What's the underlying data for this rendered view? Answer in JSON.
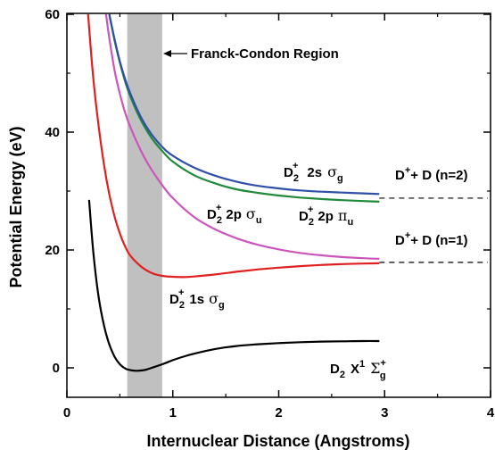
{
  "chart_data": {
    "type": "line",
    "xlabel": "Internuclear Distance (Angstroms)",
    "ylabel": "Potential Energy (eV)",
    "xlim": [
      0,
      4
    ],
    "ylim": [
      -5,
      60
    ],
    "x_ticks": [
      0,
      1,
      2,
      3,
      4
    ],
    "y_ticks": [
      0,
      20,
      40,
      60
    ],
    "grid": false,
    "legend": "none",
    "franck_condon_region": {
      "label": "Franck-Condon Region",
      "x_range": [
        0.57,
        0.9
      ],
      "color": "#c0c0c0"
    },
    "series": [
      {
        "color": "#000000",
        "x": [
          0.21,
          0.25,
          0.3,
          0.35,
          0.4,
          0.45,
          0.5,
          0.55,
          0.6,
          0.65,
          0.7,
          0.75,
          0.8,
          0.9,
          1.0,
          1.1,
          1.2,
          1.4,
          1.6,
          1.8,
          2.0,
          2.2,
          2.4,
          2.6,
          2.8,
          2.95
        ],
        "y": [
          28.5,
          19.5,
          12.0,
          7.2,
          4.0,
          1.9,
          0.6,
          -0.1,
          -0.4,
          -0.5,
          -0.45,
          -0.3,
          0.0,
          0.6,
          1.3,
          1.9,
          2.4,
          3.2,
          3.7,
          4.0,
          4.2,
          4.35,
          4.45,
          4.5,
          4.55,
          4.55
        ]
      },
      {
        "color": "#e02020",
        "x": [
          0.2,
          0.25,
          0.3,
          0.35,
          0.4,
          0.45,
          0.5,
          0.55,
          0.6,
          0.7,
          0.8,
          0.9,
          1.0,
          1.1,
          1.2,
          1.4,
          1.6,
          1.8,
          2.0,
          2.2,
          2.4,
          2.6,
          2.8,
          2.95
        ],
        "y": [
          60,
          49,
          41,
          34.5,
          29.5,
          25.7,
          22.8,
          20.6,
          19.0,
          17.2,
          16.1,
          15.6,
          15.45,
          15.4,
          15.5,
          15.85,
          16.3,
          16.7,
          17.0,
          17.25,
          17.45,
          17.6,
          17.7,
          17.75
        ]
      },
      {
        "color": "#cc55bb",
        "x": [
          0.37,
          0.4,
          0.45,
          0.5,
          0.55,
          0.6,
          0.7,
          0.8,
          0.9,
          1.0,
          1.2,
          1.4,
          1.6,
          1.8,
          2.0,
          2.2,
          2.4,
          2.6,
          2.8,
          2.95
        ],
        "y": [
          60,
          56,
          50.5,
          46.5,
          43.3,
          40.8,
          36.8,
          33.6,
          31.0,
          28.8,
          25.6,
          23.5,
          22.0,
          20.9,
          20.1,
          19.5,
          19.1,
          18.8,
          18.6,
          18.5
        ]
      },
      {
        "color": "#1f8a3a",
        "x": [
          0.4,
          0.45,
          0.5,
          0.55,
          0.6,
          0.7,
          0.8,
          0.9,
          1.0,
          1.2,
          1.4,
          1.6,
          1.8,
          2.0,
          2.2,
          2.4,
          2.6,
          2.8,
          2.95
        ],
        "y": [
          60,
          55.6,
          51.8,
          48.6,
          46.0,
          42.0,
          39.0,
          36.8,
          35.0,
          32.7,
          31.3,
          30.3,
          29.7,
          29.25,
          28.9,
          28.65,
          28.45,
          28.3,
          28.2
        ]
      },
      {
        "color": "#3050a8",
        "x": [
          0.4,
          0.45,
          0.5,
          0.55,
          0.6,
          0.7,
          0.8,
          0.9,
          1.0,
          1.2,
          1.4,
          1.6,
          1.8,
          2.0,
          2.2,
          2.4,
          2.6,
          2.8,
          2.95
        ],
        "y": [
          60,
          55.8,
          52.0,
          49.0,
          46.5,
          42.5,
          39.6,
          37.5,
          36.0,
          34.0,
          32.6,
          31.6,
          30.9,
          30.45,
          30.1,
          29.9,
          29.75,
          29.6,
          29.5
        ]
      }
    ],
    "dashed_lines": [
      {
        "x_range": [
          2.95,
          4.0
        ],
        "y": 28.8
      },
      {
        "x_range": [
          2.95,
          4.0
        ],
        "y": 17.9
      }
    ],
    "annotations": {
      "d2plus_2s_sigma_g": {
        "mol": "D",
        "sub": "2",
        "sup": "+",
        "orb": "2s",
        "sym": "σ",
        "symsub": "g"
      },
      "d2plus_2p_sigma_u": {
        "mol": "D",
        "sub": "2",
        "sup": "+",
        "orb": "2p",
        "sym": "σ",
        "symsub": "u"
      },
      "d2plus_2p_pi_u": {
        "mol": "D",
        "sub": "2",
        "sup": "+",
        "orb": "2p",
        "sym": "π",
        "symsub": "u"
      },
      "d2plus_1s_sigma_g": {
        "mol": "D",
        "sub": "2",
        "sup": "+",
        "orb": "1s",
        "sym": "σ",
        "symsub": "g"
      },
      "d2_x1_sigma_g_plus": {
        "mol": "D",
        "sub": "2",
        "state": "X",
        "statesup": "1",
        "sym": "Σ",
        "symsup": "+",
        "symsub": "g"
      },
      "dplus_d_n2": {
        "a": "D",
        "sup": "+",
        "rest": "+ D (n=2)"
      },
      "dplus_d_n1": {
        "a": "D",
        "sup": "+",
        "rest": "+ D (n=1)"
      }
    }
  }
}
